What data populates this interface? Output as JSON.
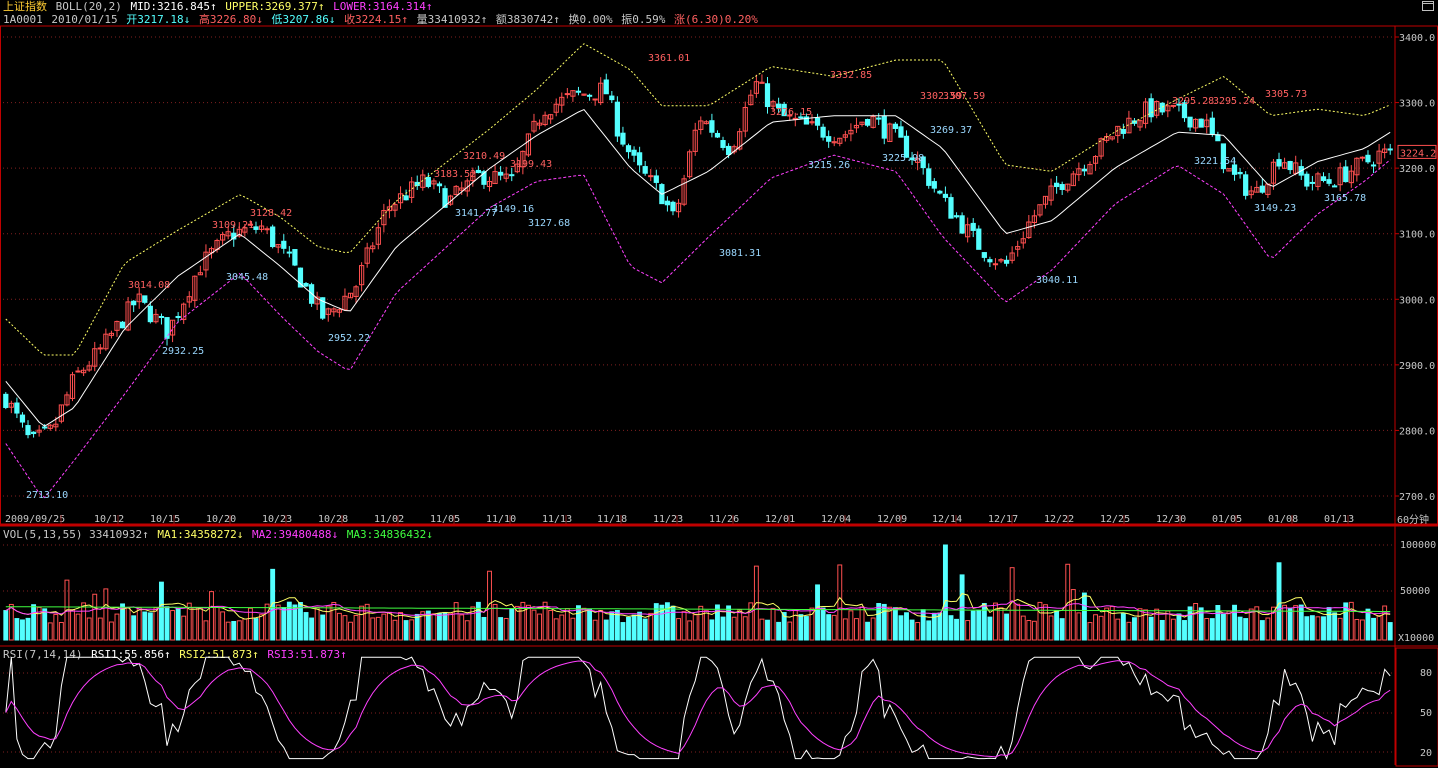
{
  "colors": {
    "up": "#ff5050",
    "down": "#54ffff",
    "mid": "#ffffff",
    "upper": "#ffff66",
    "lower": "#ff40ff",
    "ma3": "#40ff40",
    "grid": "#802020",
    "frame": "#c00000",
    "gold": "#ffcc33"
  },
  "icons": {
    "window": "window-maximize-icon"
  },
  "header": {
    "title": "上证指数",
    "indicator": "BOLL(20,2)",
    "mid": "MID:3216.845↑",
    "upper": "UPPER:3269.377↑",
    "lower": "LOWER:3164.314↑"
  },
  "quote": {
    "code": "1A0001",
    "date": "2010/01/15",
    "open": "开3217.18↓",
    "high": "高3226.80↓",
    "low": "低3207.86↓",
    "close": "收3224.15↑",
    "volume": "量33410932↑",
    "amount": "额3830742↑",
    "turnover": "换0.00%",
    "amplitude": "振0.59%",
    "change": "涨(6.30)0.20%"
  },
  "vol_header": {
    "label": "VOL(5,13,55) 33410932↑",
    "ma1": "MA1:34358272↓",
    "ma2": "MA2:39480488↓",
    "ma3": "MA3:34836432↓"
  },
  "rsi_header": {
    "label": "RSI(7,14,14)",
    "rsi1": "RSI1:55.856↑",
    "rsi2": "RSI2:51.873↑",
    "rsi3": "RSI3:51.873↑"
  },
  "period_label": "60分钟",
  "last_price_tag": "3224.2",
  "vol_unit": "X10000",
  "chart_data": [
    {
      "type": "candlestick",
      "title": "上证指数 BOLL(20,2)",
      "ylim": [
        2670,
        3420
      ],
      "y_ticks": [
        "3400.0",
        "3300.0",
        "3200.0",
        "3100.0",
        "3000.0",
        "2900.0",
        "2800.0",
        "2700.0"
      ],
      "y_tick_values": [
        3400,
        3300,
        3200,
        3100,
        3000,
        2900,
        2800,
        2700
      ],
      "x_ticks": [
        "2009/09/25",
        "10/12",
        "10/15",
        "10/20",
        "10/23",
        "10/28",
        "11/02",
        "11/05",
        "11/10",
        "11/13",
        "11/18",
        "11/23",
        "11/26",
        "12/01",
        "12/04",
        "12/09",
        "12/14",
        "12/17",
        "12/22",
        "12/25",
        "12/30",
        "01/05",
        "01/08",
        "01/13"
      ],
      "bar_count": 250,
      "mid_anchors": [
        [
          0,
          2875
        ],
        [
          12,
          2805
        ],
        [
          22,
          2835
        ],
        [
          38,
          2955
        ],
        [
          55,
          3035
        ],
        [
          75,
          3100
        ],
        [
          88,
          3050
        ],
        [
          100,
          3000
        ],
        [
          110,
          2980
        ],
        [
          125,
          3080
        ],
        [
          140,
          3140
        ],
        [
          155,
          3200
        ],
        [
          170,
          3250
        ],
        [
          185,
          3290
        ],
        [
          200,
          3200
        ],
        [
          210,
          3160
        ],
        [
          225,
          3195
        ],
        [
          245,
          3270
        ],
        [
          265,
          3280
        ],
        [
          285,
          3280
        ],
        [
          300,
          3230
        ],
        [
          320,
          3100
        ],
        [
          335,
          3120
        ],
        [
          355,
          3200
        ],
        [
          375,
          3255
        ],
        [
          390,
          3250
        ],
        [
          405,
          3170
        ],
        [
          420,
          3210
        ],
        [
          435,
          3230
        ],
        [
          445,
          3260
        ]
      ],
      "bw_anchors": [
        [
          0,
          95
        ],
        [
          12,
          110
        ],
        [
          22,
          80
        ],
        [
          38,
          100
        ],
        [
          55,
          70
        ],
        [
          75,
          60
        ],
        [
          88,
          75
        ],
        [
          100,
          80
        ],
        [
          110,
          90
        ],
        [
          125,
          70
        ],
        [
          140,
          65
        ],
        [
          155,
          60
        ],
        [
          170,
          70
        ],
        [
          185,
          100
        ],
        [
          200,
          150
        ],
        [
          210,
          135
        ],
        [
          225,
          100
        ],
        [
          245,
          85
        ],
        [
          265,
          60
        ],
        [
          285,
          85
        ],
        [
          300,
          135
        ],
        [
          320,
          105
        ],
        [
          335,
          75
        ],
        [
          355,
          55
        ],
        [
          375,
          50
        ],
        [
          390,
          90
        ],
        [
          405,
          110
        ],
        [
          420,
          80
        ],
        [
          435,
          50
        ],
        [
          445,
          40
        ]
      ],
      "price_anchors": [
        [
          0,
          2850
        ],
        [
          8,
          2780
        ],
        [
          15,
          2800
        ],
        [
          22,
          2880
        ],
        [
          30,
          2920
        ],
        [
          42,
          3000
        ],
        [
          52,
          2950
        ],
        [
          62,
          3050
        ],
        [
          72,
          3100
        ],
        [
          82,
          3110
        ],
        [
          92,
          3050
        ],
        [
          102,
          2970
        ],
        [
          112,
          3020
        ],
        [
          122,
          3140
        ],
        [
          134,
          3180
        ],
        [
          142,
          3150
        ],
        [
          152,
          3190
        ],
        [
          162,
          3180
        ],
        [
          172,
          3290
        ],
        [
          182,
          3310
        ],
        [
          192,
          3320
        ],
        [
          196,
          3260
        ],
        [
          202,
          3200
        ],
        [
          210,
          3160
        ],
        [
          214,
          3120
        ],
        [
          222,
          3280
        ],
        [
          232,
          3230
        ],
        [
          240,
          3330
        ],
        [
          248,
          3280
        ],
        [
          258,
          3260
        ],
        [
          268,
          3250
        ],
        [
          276,
          3280
        ],
        [
          284,
          3250
        ],
        [
          292,
          3210
        ],
        [
          300,
          3150
        ],
        [
          312,
          3080
        ],
        [
          320,
          3050
        ],
        [
          328,
          3120
        ],
        [
          338,
          3180
        ],
        [
          348,
          3220
        ],
        [
          356,
          3260
        ],
        [
          366,
          3290
        ],
        [
          374,
          3285
        ],
        [
          384,
          3270
        ],
        [
          392,
          3190
        ],
        [
          400,
          3160
        ],
        [
          408,
          3220
        ],
        [
          416,
          3180
        ],
        [
          424,
          3180
        ],
        [
          432,
          3200
        ],
        [
          440,
          3222
        ]
      ],
      "high_labels": [
        {
          "t": "3014.08"
        },
        {
          "t": "3109.21"
        },
        {
          "t": "3128.42"
        },
        {
          "t": "3183.52"
        },
        {
          "t": "3210.49"
        },
        {
          "t": "3199.43"
        },
        {
          "t": "3361.01"
        },
        {
          "t": "3276.15"
        },
        {
          "t": "3332.85"
        },
        {
          "t": "3302.59"
        },
        {
          "t": "3307.59"
        },
        {
          "t": "3295.28"
        },
        {
          "t": "3295.24"
        },
        {
          "t": "3305.73"
        }
      ],
      "low_labels": [
        {
          "t": "2713.10"
        },
        {
          "t": "2932.25"
        },
        {
          "t": "3045.48"
        },
        {
          "t": "2952.22"
        },
        {
          "t": "3141.77"
        },
        {
          "t": "3149.16"
        },
        {
          "t": "3127.68"
        },
        {
          "t": "3081.31"
        },
        {
          "t": "3215.26"
        },
        {
          "t": "3225.98"
        },
        {
          "t": "3269.37"
        },
        {
          "t": "3040.11"
        },
        {
          "t": "3221.54"
        },
        {
          "t": "3149.23"
        },
        {
          "t": "3165.78"
        }
      ]
    },
    {
      "type": "bar",
      "title": "VOL(5,13,55)",
      "y_ticks": [
        "100000",
        "50000",
        "X10000"
      ],
      "ylim": [
        0,
        100000
      ],
      "ma3_start": 35000,
      "ma3_end": 30000
    },
    {
      "type": "line",
      "title": "RSI(7,14,14)",
      "y_ticks": [
        "80",
        "50",
        "20"
      ],
      "ylim": [
        10,
        95
      ]
    }
  ]
}
